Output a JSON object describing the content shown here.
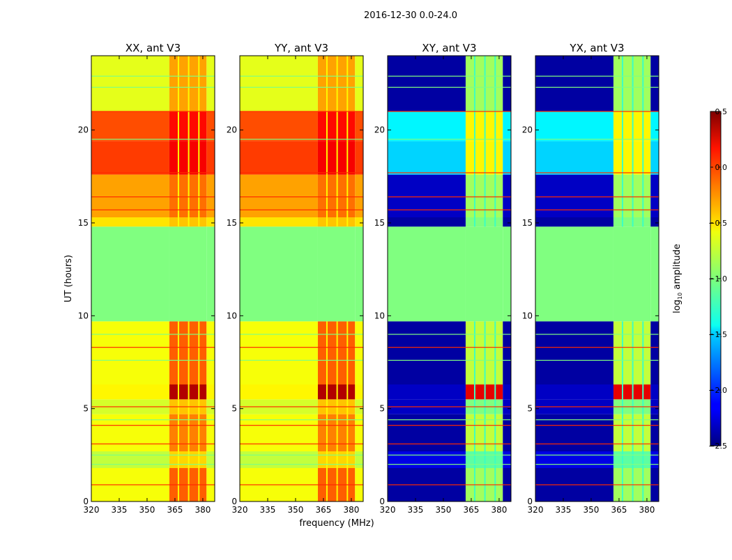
{
  "chart_data": {
    "type": "heatmap",
    "title": "2016-12-30 0.0-24.0",
    "xlabel": "frequency (MHz)",
    "ylabel": "UT (hours)",
    "xlim": [
      320,
      386.4
    ],
    "ylim": [
      0,
      24
    ],
    "x_ticks": [
      "320",
      "335",
      "350",
      "365",
      "380"
    ],
    "x_tick_values": [
      320,
      335,
      350,
      365,
      380
    ],
    "y_ticks": [
      "0",
      "5",
      "10",
      "15",
      "20"
    ],
    "y_tick_values": [
      0,
      5,
      10,
      15,
      20
    ],
    "colormap": "jet",
    "colorbar": {
      "label": "log10 amplitude",
      "label_main": "log",
      "label_sub": "10",
      "label_rest": " amplitude",
      "range": [
        -2.5,
        0.5
      ],
      "ticks": [
        "0.5",
        "0.0",
        "−0.5",
        "−1.0",
        "−1.5",
        "−2.0",
        "−2.5"
      ],
      "tick_values": [
        0.5,
        0.0,
        -0.5,
        -1.0,
        -1.5,
        -2.0,
        -2.5
      ]
    },
    "hot_band_mhz": [
      362,
      382
    ],
    "time_bands": [
      {
        "t0": 0.0,
        "t1": 1.8,
        "par": -0.65,
        "par_hot": -0.15,
        "cross": -2.4,
        "cross_hot": -0.9
      },
      {
        "t0": 1.8,
        "t1": 2.7,
        "par": -0.8,
        "par_hot": -0.5,
        "cross": -2.2,
        "cross_hot": -1.1
      },
      {
        "t0": 2.7,
        "t1": 4.7,
        "par": -0.65,
        "par_hot": -0.25,
        "cross": -2.4,
        "cross_hot": -0.8
      },
      {
        "t0": 4.7,
        "t1": 5.5,
        "par": -0.75,
        "par_hot": -0.45,
        "cross": -2.3,
        "cross_hot": -1.0
      },
      {
        "t0": 5.5,
        "t1": 6.3,
        "par": -0.6,
        "par_hot": 0.35,
        "cross": -2.3,
        "cross_hot": 0.2
      },
      {
        "t0": 6.3,
        "t1": 9.7,
        "par": -0.65,
        "par_hot": -0.15,
        "cross": -2.4,
        "cross_hot": -0.8
      },
      {
        "t0": 9.7,
        "t1": 14.8,
        "par": -1.0,
        "par_hot": -1.0,
        "cross": -1.0,
        "cross_hot": -1.0
      },
      {
        "t0": 14.8,
        "t1": 15.3,
        "par": -0.55,
        "par_hot": -0.45,
        "cross": -2.4,
        "cross_hot": -1.0
      },
      {
        "t0": 15.3,
        "t1": 17.6,
        "par": -0.35,
        "par_hot": -0.2,
        "cross": -2.3,
        "cross_hot": -0.9
      },
      {
        "t0": 17.6,
        "t1": 19.4,
        "par": -0.05,
        "par_hot": 0.15,
        "cross": -1.5,
        "cross_hot": -0.6
      },
      {
        "t0": 19.4,
        "t1": 21.0,
        "par": -0.1,
        "par_hot": 0.1,
        "cross": -1.4,
        "cross_hot": -0.6
      },
      {
        "t0": 21.0,
        "t1": 24.0,
        "par": -0.7,
        "par_hot": -0.35,
        "cross": -2.4,
        "cross_hot": -0.9
      }
    ],
    "flag_lines": [
      {
        "t": 0.9,
        "v": 0.0
      },
      {
        "t": 2.0,
        "v": -1.0
      },
      {
        "t": 2.5,
        "v": -1.0
      },
      {
        "t": 3.1,
        "v": 0.0
      },
      {
        "t": 4.1,
        "v": 0.0
      },
      {
        "t": 4.4,
        "v": -1.0
      },
      {
        "t": 5.1,
        "v": 0.0
      },
      {
        "t": 7.6,
        "v": -1.0
      },
      {
        "t": 8.3,
        "v": 0.0
      },
      {
        "t": 9.0,
        "v": -1.0
      },
      {
        "t": 15.7,
        "v": 0.0
      },
      {
        "t": 16.4,
        "v": 0.0
      },
      {
        "t": 17.7,
        "v": 0.0
      },
      {
        "t": 19.5,
        "v": -1.0
      },
      {
        "t": 21.0,
        "v": 0.0
      },
      {
        "t": 22.3,
        "v": -1.0
      },
      {
        "t": 22.9,
        "v": -1.0
      }
    ],
    "panels": [
      {
        "title": "XX, ant V3",
        "kind": "par"
      },
      {
        "title": "YY, ant V3",
        "kind": "par"
      },
      {
        "title": "XY, ant V3",
        "kind": "cross"
      },
      {
        "title": "YX, ant V3",
        "kind": "cross"
      }
    ]
  }
}
